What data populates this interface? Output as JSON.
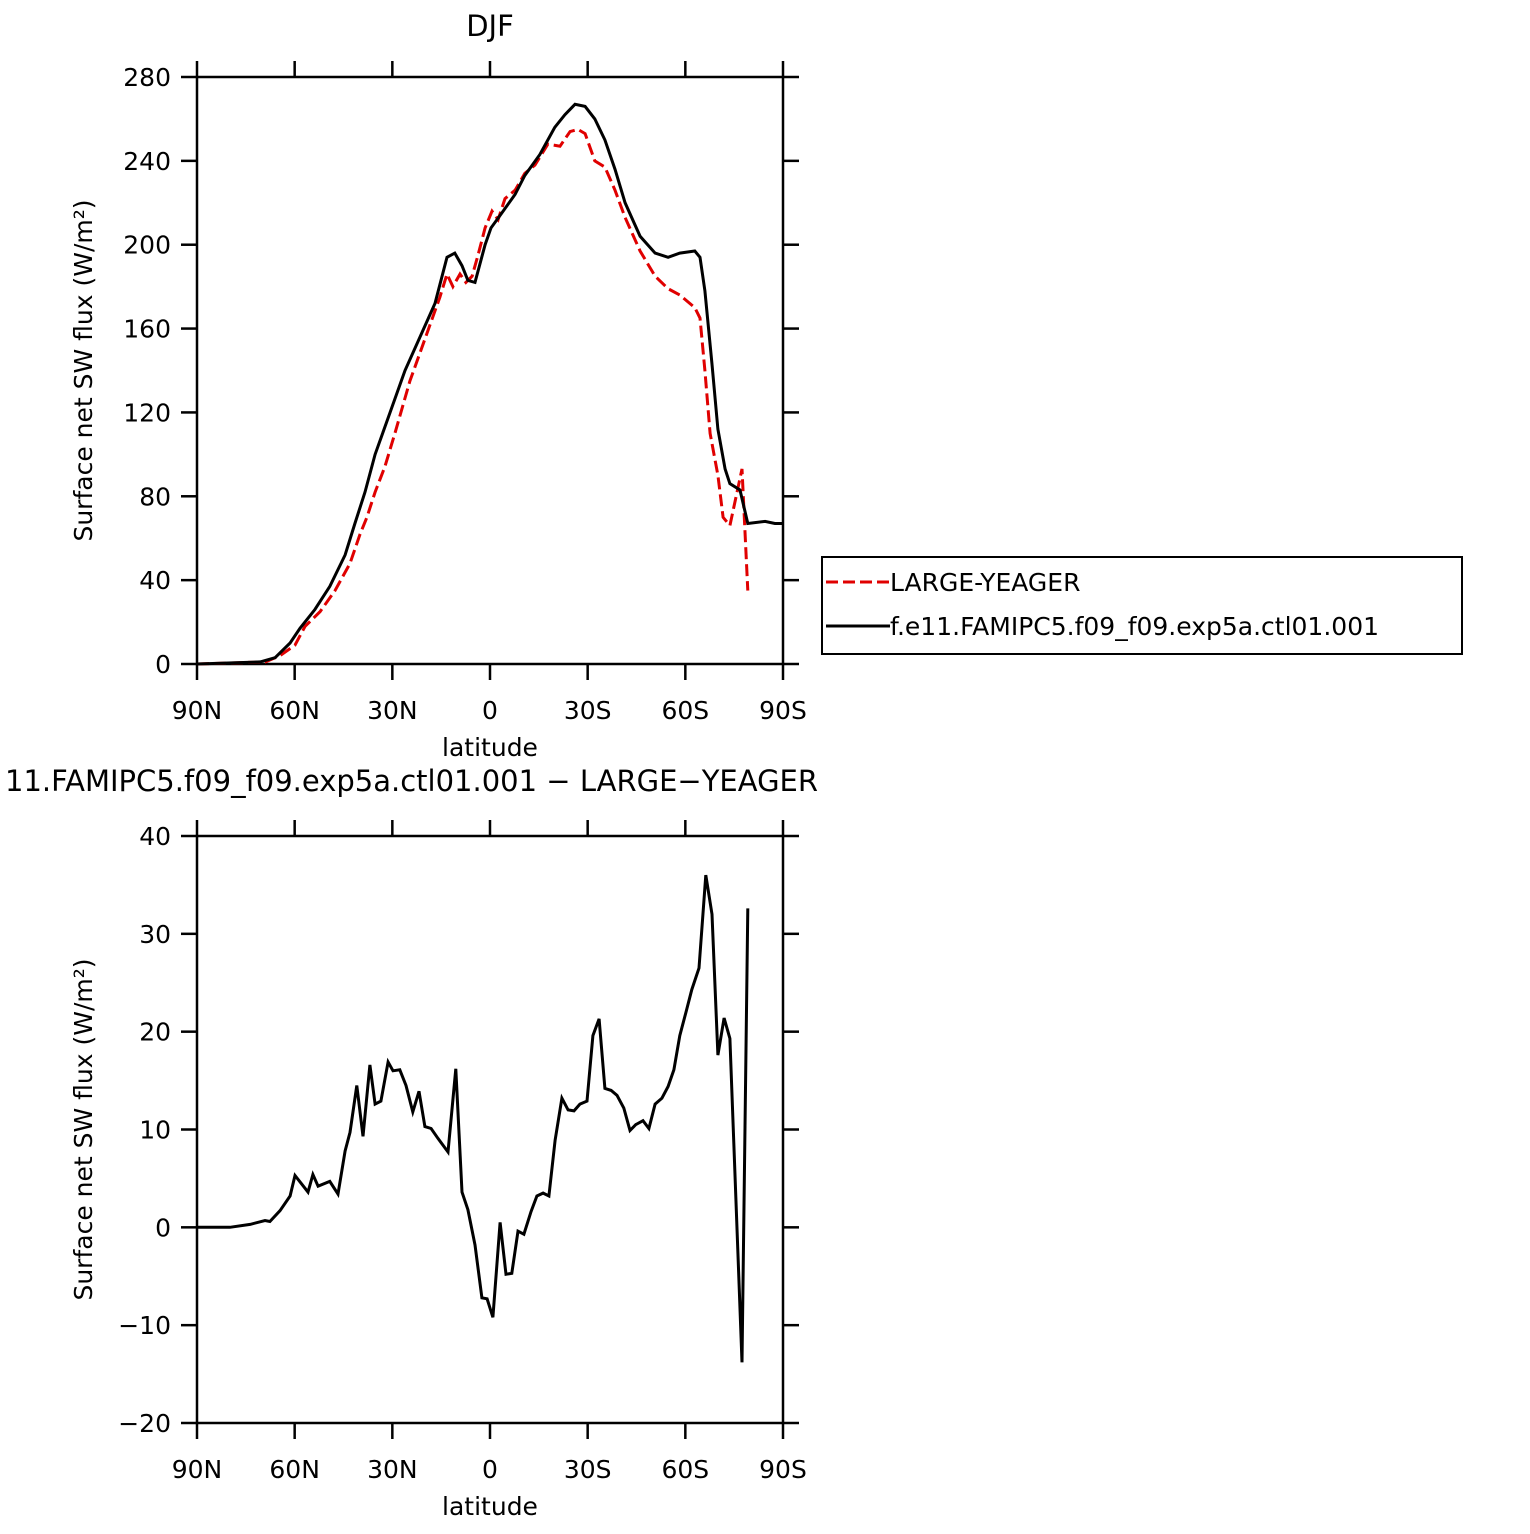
{
  "chart_data": [
    {
      "type": "line",
      "title": "DJF",
      "x_label": "latitude",
      "y_label": "Surface net SW flux (W/m²)",
      "xlim": [
        90,
        -90
      ],
      "xticks": [
        {
          "value": 90,
          "label": "90N"
        },
        {
          "value": 60,
          "label": "60N"
        },
        {
          "value": 30,
          "label": "30N"
        },
        0,
        {
          "value": -30,
          "label": "30S"
        },
        {
          "value": -60,
          "label": "60S"
        },
        {
          "value": -90,
          "label": "90S"
        }
      ],
      "ylim": [
        0,
        280
      ],
      "yticks": [
        0,
        40,
        80,
        120,
        160,
        200,
        240,
        280
      ],
      "legend": "right",
      "series": [
        {
          "name": "LARGE-YEAGER",
          "color": "#e00000",
          "dash": true,
          "x": [
            90,
            69,
            64.5,
            59.9,
            56.8,
            52.2,
            47.6,
            43,
            39.9,
            37.8,
            35.3,
            32.3,
            29.2,
            24.6,
            20,
            15.4,
            13.2,
            11.4,
            9.2,
            7.4,
            5.5,
            3.7,
            1.5,
            -0.6,
            -2.5,
            -4.6,
            -7.7,
            -10.7,
            -13.8,
            -17.8,
            -21.5,
            -24.6,
            -27,
            -29.2,
            -32.2,
            -35.3,
            -38.4,
            -41.5,
            -46.1,
            -50.7,
            -54.7,
            -58.3,
            -62.9,
            -64.5,
            -66,
            -67.6,
            -70,
            -71.6,
            -73.7,
            -77.4,
            -79.2
          ],
          "values": [
            0,
            1,
            4,
            9,
            18,
            25,
            35,
            48,
            62,
            70,
            82,
            94,
            110,
            135,
            155,
            175,
            186,
            180,
            186,
            182,
            185,
            195,
            208,
            216,
            212,
            222,
            226,
            234,
            238,
            248,
            247,
            254,
            255,
            253,
            240,
            237,
            226,
            213,
            197,
            185,
            179,
            176,
            170,
            165,
            140,
            110,
            90,
            70,
            66,
            93,
            35
          ]
        },
        {
          "name": "f.e11.FAMIPC5.f09_f09.exp5a.ctl01.001",
          "color": "#000000",
          "dash": false,
          "x": [
            90,
            70.6,
            66,
            61.4,
            58.4,
            53.8,
            49.2,
            44.5,
            41.5,
            38.4,
            35.3,
            30.7,
            26.1,
            21.5,
            16.9,
            13.2,
            10.8,
            8.6,
            6.8,
            4.6,
            1.5,
            -0.3,
            -3.1,
            -7.7,
            -10.7,
            -15.3,
            -19.9,
            -23,
            -26.1,
            -29.2,
            -32.2,
            -35.3,
            -38.4,
            -41.5,
            -46.1,
            -50.7,
            -54.7,
            -58.3,
            -62.9,
            -64.5,
            -66,
            -68.2,
            -70,
            -72.2,
            -73.7,
            -76.8,
            -79.2,
            -84.5,
            -87.5,
            -90
          ],
          "values": [
            0,
            1,
            3,
            10,
            17,
            26,
            37,
            52,
            67,
            82,
            100,
            120,
            140,
            156,
            172,
            194,
            196,
            190,
            183,
            182,
            200,
            208,
            214,
            224,
            233,
            243,
            256,
            262,
            267,
            266,
            260,
            250,
            236,
            220,
            204,
            196,
            194,
            196,
            197,
            194,
            178,
            143,
            112,
            93,
            86,
            83,
            67,
            68,
            67,
            67
          ]
        }
      ]
    },
    {
      "type": "line",
      "title": "11.FAMIPC5.f09_f09.exp5a.ctl01.001 − LARGE−YEAGER",
      "x_label": "latitude",
      "y_label": "Surface net SW flux (W/m²)",
      "xlim": [
        90,
        -90
      ],
      "xticks": [
        {
          "value": 90,
          "label": "90N"
        },
        {
          "value": 60,
          "label": "60N"
        },
        {
          "value": 30,
          "label": "30N"
        },
        0,
        {
          "value": -30,
          "label": "30S"
        },
        {
          "value": -60,
          "label": "60S"
        },
        {
          "value": -90,
          "label": "90S"
        }
      ],
      "ylim": [
        -20,
        40
      ],
      "yticks": [
        {
          "value": -20,
          "label": "−20"
        },
        {
          "value": -10,
          "label": "−10"
        },
        0,
        10,
        20,
        30,
        40
      ],
      "series": [
        {
          "color": "#000000",
          "dash": false,
          "x": [
            90,
            79.9,
            73.7,
            69.1,
            67.6,
            64.5,
            61.4,
            59.9,
            55.9,
            54.4,
            52.8,
            49.2,
            46.7,
            44.5,
            43,
            40.9,
            39,
            36.9,
            35.3,
            33.5,
            31.3,
            29.8,
            27.7,
            25.8,
            23.7,
            21.8,
            20,
            18.1,
            16,
            12.9,
            10.5,
            8.6,
            6.8,
            4.6,
            2.5,
            0.9,
            -0.9,
            -3.1,
            -4.9,
            -6.7,
            -8.6,
            -10.4,
            -12.6,
            -14.4,
            -16.3,
            -18.1,
            -20,
            -22.1,
            -24,
            -25.8,
            -27.6,
            -29.8,
            -31.6,
            -33.5,
            -35.3,
            -37.2,
            -39,
            -41.1,
            -43,
            -44.8,
            -47,
            -48.8,
            -50.7,
            -52.8,
            -54.7,
            -56.5,
            -58.3,
            -60.2,
            -62,
            -64.2,
            -66.3,
            -68.2,
            -70,
            -71.9,
            -73.7,
            -77.4,
            -79.2
          ],
          "values": [
            0,
            0,
            0.3,
            0.7,
            0.6,
            1.7,
            3.2,
            5.3,
            3.6,
            5.4,
            4.2,
            4.7,
            3.4,
            7.8,
            9.7,
            14.5,
            9.3,
            16.6,
            12.6,
            12.9,
            16.9,
            16,
            16.1,
            14.5,
            11.8,
            13.9,
            10.3,
            10.1,
            9.1,
            7.7,
            16.2,
            3.6,
            1.8,
            -1.8,
            -7.2,
            -7.3,
            -9.2,
            0.5,
            -4.8,
            -4.7,
            -0.4,
            -0.7,
            1.6,
            3.2,
            3.5,
            3.2,
            8.9,
            13.2,
            12,
            11.9,
            12.6,
            12.9,
            19.6,
            21.3,
            14.2,
            14,
            13.5,
            12.2,
            9.9,
            10.5,
            10.9,
            10.1,
            12.6,
            13.2,
            14.4,
            16.1,
            19.6,
            22,
            24.3,
            26.5,
            36,
            32,
            17.6,
            21.4,
            19.3,
            -13.8,
            32.6
          ]
        }
      ]
    }
  ]
}
